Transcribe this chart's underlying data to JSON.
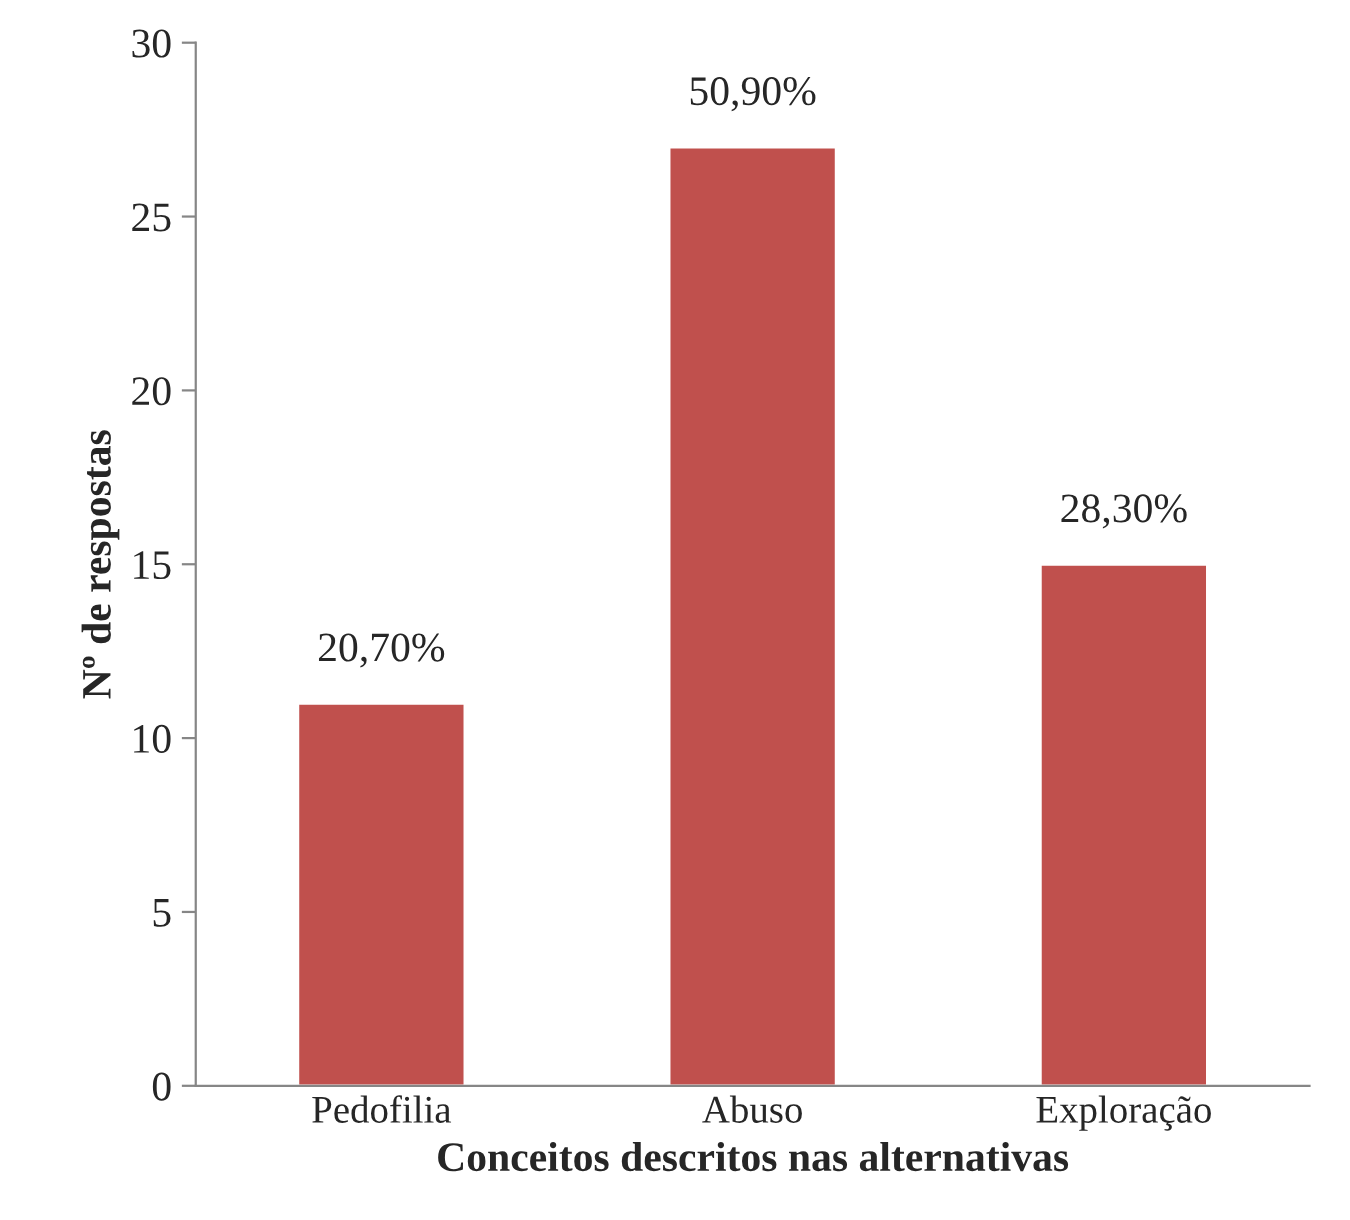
{
  "chart_data": {
    "type": "bar",
    "xlabel": "Conceitos descritos nas alternativas",
    "ylabel": "Nº de respostas",
    "categories": [
      "Pedofilia",
      "Abuso",
      "Exploração"
    ],
    "values": [
      11,
      27,
      15
    ],
    "color": "#c0504d",
    "annotations": [
      {
        "text": "20,70%",
        "x": "Pedofilia",
        "y": 11
      },
      {
        "text": "50,90%",
        "x": "Abuso",
        "y": 27
      },
      {
        "text": "28,30%",
        "x": "Exploração",
        "y": 15
      }
    ],
    "ylim": [
      0,
      30
    ],
    "yticks": [
      0,
      5,
      10,
      15,
      20,
      25,
      30
    ],
    "grid": false,
    "legend": false
  }
}
